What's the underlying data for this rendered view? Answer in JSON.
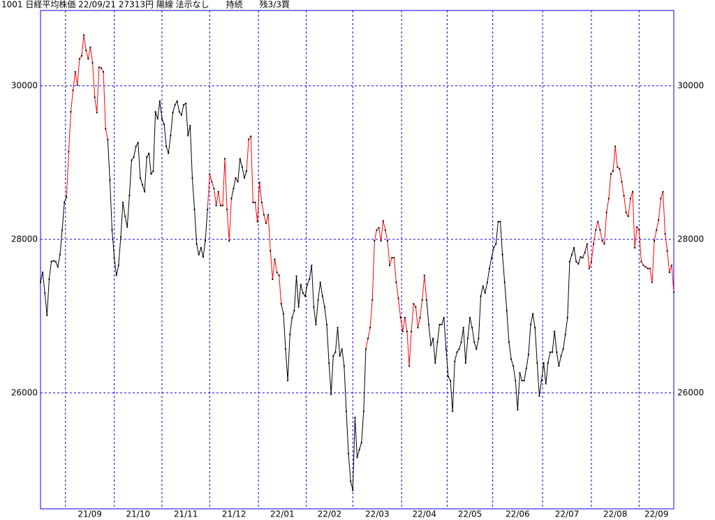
{
  "chart_data": {
    "type": "line",
    "title": "1001 日経平均株価 22/09/21 27313円 陽線 法示なし　　持続　　残3/3買",
    "values": [
      27440,
      27570,
      27300,
      27010,
      27480,
      27710,
      27720,
      27710,
      27640,
      27800,
      28120,
      28480,
      28550,
      29140,
      29660,
      29940,
      30180,
      30010,
      30350,
      30390,
      30660,
      30460,
      30350,
      30500,
      30300,
      29850,
      29650,
      30240,
      30230,
      30180,
      29440,
      29300,
      28770,
      28120,
      27760,
      27530,
      27660,
      28030,
      28480,
      28300,
      28160,
      28570,
      29030,
      29070,
      29210,
      29260,
      28800,
      28710,
      28620,
      29070,
      29120,
      28850,
      28890,
      29660,
      29570,
      29800,
      29570,
      29500,
      29210,
      29120,
      29350,
      29650,
      29750,
      29800,
      29660,
      29620,
      29750,
      29770,
      29350,
      29480,
      28800,
      28390,
      27940,
      27800,
      27890,
      27770,
      27980,
      28390,
      28850,
      28750,
      28660,
      28440,
      28620,
      28440,
      28440,
      29050,
      28390,
      27980,
      28530,
      28660,
      28800,
      28750,
      29050,
      28940,
      28800,
      28890,
      29300,
      29340,
      28480,
      28480,
      28230,
      28740,
      28480,
      28320,
      28210,
      28320,
      27850,
      27480,
      27740,
      27570,
      27530,
      27160,
      27030,
      26570,
      26160,
      26760,
      26980,
      27070,
      27520,
      27120,
      27410,
      27300,
      27260,
      27410,
      27480,
      27660,
      27120,
      26890,
      27210,
      27440,
      27260,
      27120,
      26890,
      26390,
      25980,
      26480,
      26530,
      26850,
      26480,
      26570,
      26350,
      25760,
      25210,
      24850,
      24730,
      25680,
      25160,
      25260,
      25350,
      25760,
      26570,
      26710,
      26850,
      27210,
      27980,
      28120,
      28150,
      27980,
      28240,
      28120,
      27980,
      27660,
      27760,
      27760,
      27440,
      27230,
      26980,
      26800,
      26980,
      26800,
      26350,
      26800,
      27160,
      27120,
      26850,
      26980,
      27210,
      27530,
      27210,
      26890,
      26620,
      26710,
      26390,
      26660,
      26890,
      26890,
      26980,
      26570,
      26210,
      26160,
      25760,
      26410,
      26530,
      26570,
      26660,
      26850,
      26390,
      26710,
      26980,
      26850,
      26660,
      26570,
      26710,
      27260,
      27390,
      27300,
      27440,
      27620,
      27760,
      27890,
      27940,
      28230,
      28230,
      27800,
      27440,
      27070,
      26660,
      26440,
      26350,
      26160,
      25780,
      26260,
      26160,
      26160,
      26320,
      26500,
      26890,
      27030,
      26850,
      26390,
      25960,
      26160,
      26390,
      26120,
      26390,
      26530,
      26530,
      26800,
      26530,
      26350,
      26480,
      26570,
      26760,
      26980,
      27710,
      27800,
      27890,
      27710,
      27680,
      27770,
      27760,
      27830,
      27940,
      27620,
      27710,
      27940,
      28120,
      28230,
      28120,
      27980,
      27940,
      28350,
      28530,
      28850,
      28890,
      29210,
      28940,
      28920,
      28750,
      28570,
      28350,
      28300,
      28530,
      28620,
      27890,
      28160,
      28120,
      27710,
      27660,
      27640,
      27620,
      27620,
      27440,
      27980,
      28120,
      28250,
      28530,
      28620,
      28070,
      27850,
      27570,
      27660,
      27313
    ],
    "colors": [
      "#000",
      "#000",
      "#000",
      "#000",
      "#000",
      "#000",
      "#000",
      "#000",
      "#000",
      "#000",
      "#000",
      "#000",
      "#000",
      "#f00",
      "#f00",
      "#f00",
      "#f00",
      "#f00",
      "#f00",
      "#f00",
      "#f00",
      "#f00",
      "#f00",
      "#f00",
      "#f00",
      "#f00",
      "#f00",
      "#f00",
      "#f00",
      "#f00",
      "#f00",
      "#f00",
      "#000",
      "#000",
      "#000",
      "#000",
      "#000",
      "#000",
      "#000",
      "#000",
      "#000",
      "#000",
      "#000",
      "#000",
      "#000",
      "#000",
      "#000",
      "#000",
      "#000",
      "#000",
      "#000",
      "#000",
      "#000",
      "#000",
      "#000",
      "#000",
      "#000",
      "#000",
      "#000",
      "#000",
      "#000",
      "#000",
      "#000",
      "#000",
      "#000",
      "#000",
      "#000",
      "#000",
      "#000",
      "#000",
      "#000",
      "#000",
      "#000",
      "#000",
      "#000",
      "#000",
      "#000",
      "#000",
      "#f00",
      "#f00",
      "#f00",
      "#f00",
      "#f00",
      "#f00",
      "#f00",
      "#f00",
      "#f00",
      "#f00",
      "#f00",
      "#000",
      "#000",
      "#000",
      "#000",
      "#000",
      "#000",
      "#000",
      "#f00",
      "#f00",
      "#f00",
      "#f00",
      "#f00",
      "#f00",
      "#f00",
      "#f00",
      "#f00",
      "#f00",
      "#f00",
      "#f00",
      "#f00",
      "#f00",
      "#f00",
      "#f00",
      "#000",
      "#000",
      "#000",
      "#000",
      "#000",
      "#000",
      "#000",
      "#000",
      "#000",
      "#000",
      "#000",
      "#000",
      "#000",
      "#000",
      "#000",
      "#000",
      "#000",
      "#000",
      "#000",
      "#000",
      "#000",
      "#000",
      "#000",
      "#000",
      "#000",
      "#000",
      "#000",
      "#000",
      "#000",
      "#000",
      "#000",
      "#000",
      "#000",
      "#000",
      "#000",
      "#000",
      "#000",
      "#000",
      "#000",
      "#f00",
      "#f00",
      "#f00",
      "#f00",
      "#f00",
      "#f00",
      "#f00",
      "#f00",
      "#f00",
      "#f00",
      "#f00",
      "#f00",
      "#f00",
      "#f00",
      "#f00",
      "#f00",
      "#f00",
      "#f00",
      "#f00",
      "#f00",
      "#f00",
      "#f00",
      "#f00",
      "#f00",
      "#f00",
      "#f00",
      "#f00",
      "#f00",
      "#000",
      "#000",
      "#000",
      "#000",
      "#000",
      "#000",
      "#000",
      "#000",
      "#000",
      "#000",
      "#000",
      "#000",
      "#000",
      "#000",
      "#000",
      "#000",
      "#000",
      "#000",
      "#000",
      "#000",
      "#000",
      "#000",
      "#000",
      "#000",
      "#000",
      "#000",
      "#000",
      "#000",
      "#000",
      "#000",
      "#000",
      "#000",
      "#000",
      "#000",
      "#000",
      "#000",
      "#000",
      "#000",
      "#000",
      "#000",
      "#000",
      "#000",
      "#000",
      "#000",
      "#000",
      "#000",
      "#000",
      "#000",
      "#000",
      "#000",
      "#000",
      "#000",
      "#000",
      "#000",
      "#000",
      "#000",
      "#000",
      "#000",
      "#000",
      "#000",
      "#000",
      "#000",
      "#000",
      "#000",
      "#000",
      "#000",
      "#000",
      "#000",
      "#000",
      "#000",
      "#000",
      "#000",
      "#000",
      "#000",
      "#f00",
      "#f00",
      "#f00",
      "#f00",
      "#f00",
      "#f00",
      "#f00",
      "#f00",
      "#f00",
      "#f00",
      "#f00",
      "#f00",
      "#f00",
      "#f00",
      "#f00",
      "#f00",
      "#f00",
      "#f00",
      "#f00",
      "#f00",
      "#f00",
      "#f00",
      "#f00",
      "#f00",
      "#f00",
      "#f00",
      "#f00",
      "#f00",
      "#f00",
      "#f00",
      "#f00",
      "#f00",
      "#f00",
      "#f00",
      "#f00",
      "#f00",
      "#f00",
      "#f00",
      "#f00",
      "#f00"
    ],
    "marker_color": "#000",
    "xlim": [
      0,
      292
    ],
    "xticks": [
      {
        "value": 11.5,
        "label": "21/09"
      },
      {
        "value": 34,
        "label": "21/10"
      },
      {
        "value": 56,
        "label": "21/11"
      },
      {
        "value": 78,
        "label": "21/12"
      },
      {
        "value": 100.5,
        "label": "22/01"
      },
      {
        "value": 122.5,
        "label": "22/02"
      },
      {
        "value": 144,
        "label": "22/03"
      },
      {
        "value": 166.5,
        "label": "22/04"
      },
      {
        "value": 187.5,
        "label": "22/05"
      },
      {
        "value": 208.5,
        "label": "22/06"
      },
      {
        "value": 231.5,
        "label": "22/07"
      },
      {
        "value": 254,
        "label": "22/08"
      },
      {
        "value": 276,
        "label": "22/09"
      }
    ],
    "ylim": [
      24490,
      30980
    ],
    "yticks": [
      26000,
      28000,
      30000
    ],
    "grid": true,
    "grid_color": "#0000ff"
  }
}
